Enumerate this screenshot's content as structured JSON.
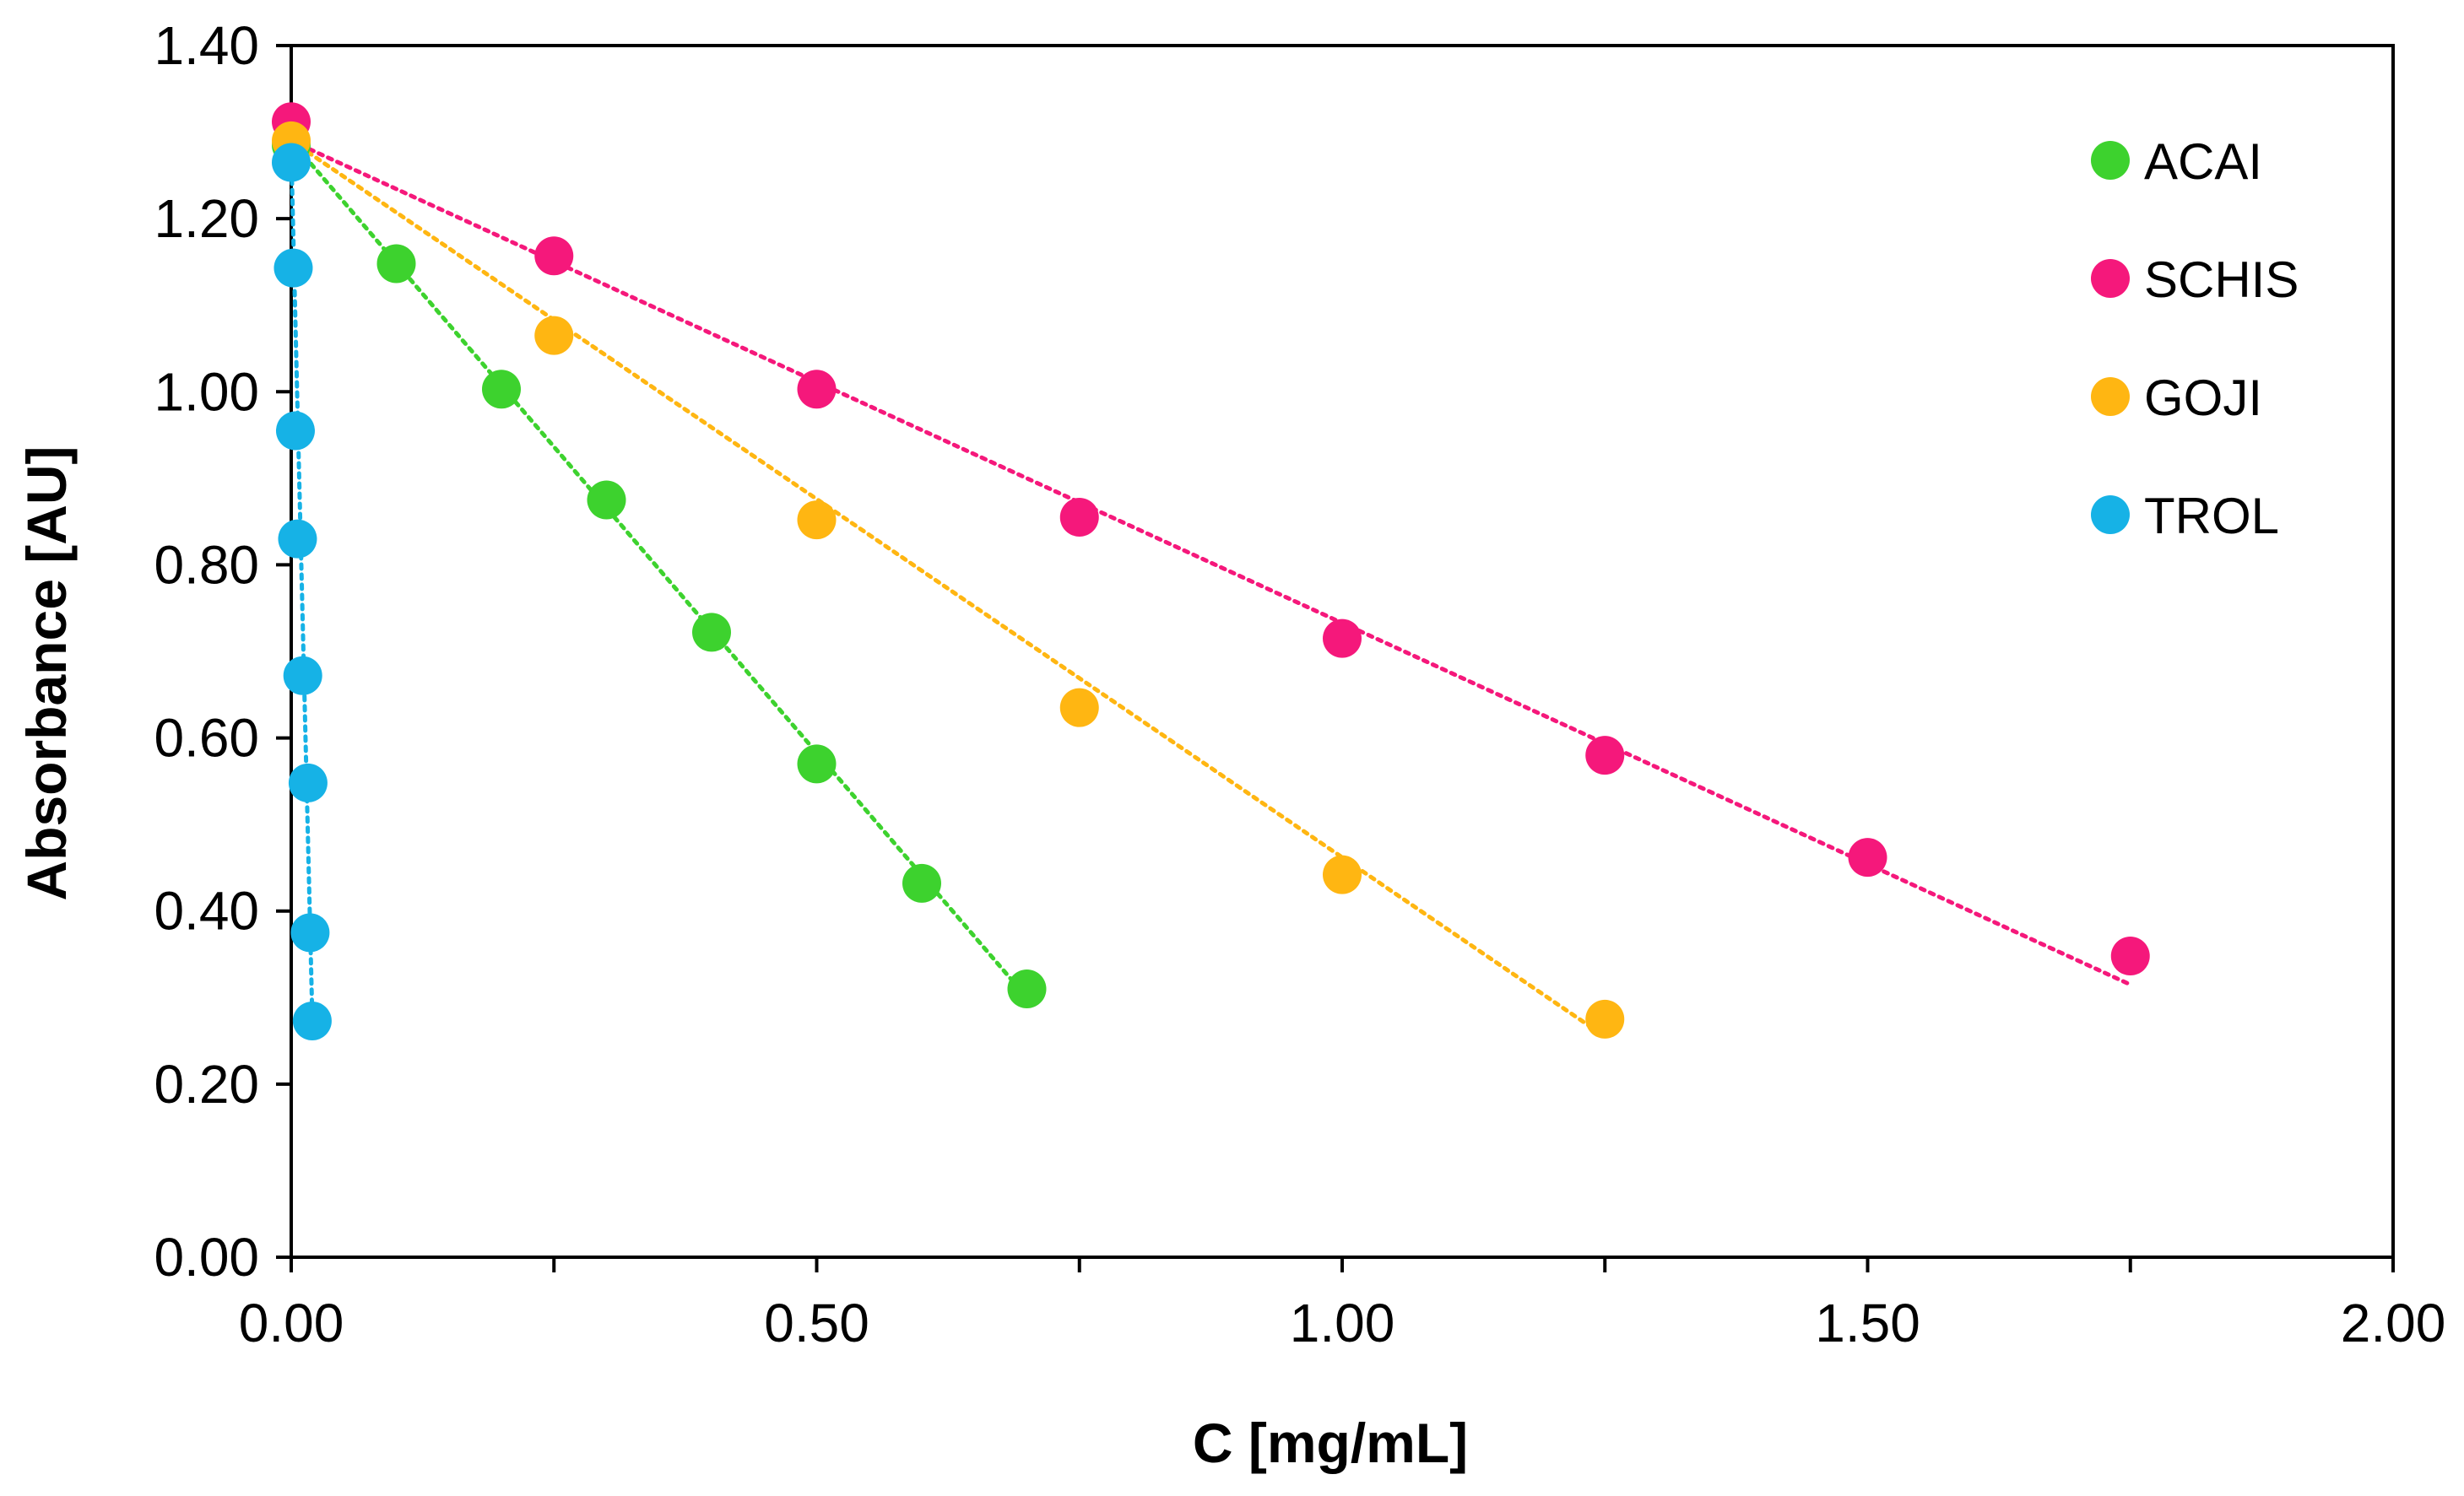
{
  "chart_data": {
    "type": "scatter",
    "title": "",
    "xlabel": "C [mg/mL]",
    "ylabel": "Absorbance [AU]",
    "xlim": [
      0,
      2
    ],
    "ylim": [
      0,
      1.4
    ],
    "x_ticks": [
      "0.00",
      "0.50",
      "1.00",
      "1.50",
      "2.00"
    ],
    "y_ticks": [
      "0.00",
      "0.20",
      "0.40",
      "0.60",
      "0.80",
      "1.00",
      "1.20",
      "1.40"
    ],
    "x_tick_values": [
      0,
      0.5,
      1.0,
      1.5,
      2.0
    ],
    "y_tick_values": [
      0,
      0.2,
      0.4,
      0.6,
      0.8,
      1.0,
      1.2,
      1.4
    ],
    "grid": false,
    "legend_position": "top-right",
    "trendline_style": "dotted linear",
    "series": [
      {
        "name": "ACAI",
        "color": "#3dd22e",
        "x": [
          0,
          0.1,
          0.2,
          0.3,
          0.4,
          0.5,
          0.6,
          0.7
        ],
        "y": [
          1.285,
          1.148,
          1.003,
          0.875,
          0.722,
          0.57,
          0.432,
          0.31
        ],
        "trend": [
          [
            0,
            1.29
          ],
          [
            0.7,
            0.3
          ]
        ]
      },
      {
        "name": "SCHIS",
        "color": "#f5187b",
        "x": [
          0,
          0.25,
          0.5,
          0.75,
          1.0,
          1.25,
          1.5,
          1.75
        ],
        "y": [
          1.312,
          1.157,
          1.003,
          0.855,
          0.715,
          0.58,
          0.462,
          0.348
        ],
        "trend": [
          [
            0,
            1.29
          ],
          [
            1.75,
            0.315
          ]
        ]
      },
      {
        "name": "GOJI",
        "color": "#ffb612",
        "x": [
          0,
          0.25,
          0.5,
          0.75,
          1.0,
          1.25
        ],
        "y": [
          1.29,
          1.065,
          0.852,
          0.635,
          0.442,
          0.275
        ],
        "trend": [
          [
            0,
            1.29
          ],
          [
            1.25,
            0.255
          ]
        ]
      },
      {
        "name": "TROL",
        "color": "#16b2e6",
        "x": [
          0,
          0.002,
          0.004,
          0.006,
          0.011,
          0.016,
          0.018,
          0.02
        ],
        "y": [
          1.265,
          1.143,
          0.955,
          0.83,
          0.672,
          0.548,
          0.375,
          0.273
        ],
        "trend": [
          [
            0,
            1.28
          ],
          [
            0.02,
            0.28
          ]
        ]
      }
    ]
  }
}
